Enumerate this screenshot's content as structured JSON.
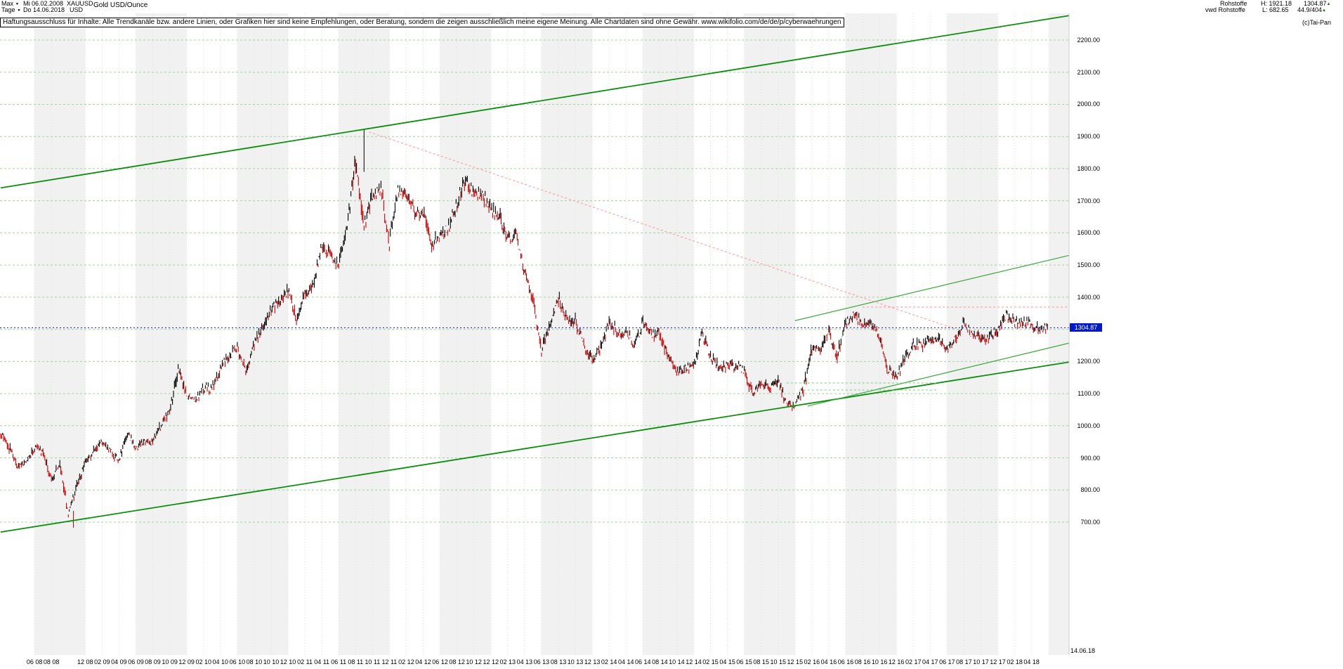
{
  "icons": {
    "dropdown": "▼",
    "up_arrow": "▲"
  },
  "header": {
    "left": {
      "range_selector": "Max",
      "range_start_date": "Mi 06.02.2008",
      "symbol": "XAUUSD",
      "instrument_name": "Gold USD/Ounce",
      "period_selector": "Tage",
      "period_end_date": "Do 14.06.2018",
      "currency": "USD"
    },
    "right": {
      "category": "Rohstoffe",
      "high_label": "H: 1921.18",
      "last_value": "1304.87",
      "feed": "vwd Rohstoffe",
      "low_label": "L: 682.65",
      "ratio_value": "44.9/404",
      "copyright": "(c)Tai-Pan"
    }
  },
  "disclaimer": "Haftungsausschluss für Inhalte: Alle Trendkanäle bzw. andere Linien, oder Grafiken hier sind keine Empfehlungen, oder Beratung, sondern die zeigen ausschließlich meine eigene Meinung. Alle Chartdaten sind ohne Gewähr.  www.wikifolio.com/de/de/p/cyberwaehrungen",
  "y_axis": {
    "ticks": [
      "2200.00",
      "2100.00",
      "2000.00",
      "1900.00",
      "1800.00",
      "1700.00",
      "1600.00",
      "1500.00",
      "1400.00",
      "1300.00",
      "1200.00",
      "1100.00",
      "1000.00",
      "900.00",
      "800.00",
      "700.00"
    ],
    "price_marker": "1304.87",
    "end_date": "14.06.18"
  },
  "x_axis": {
    "ticks": [
      {
        "label": "06 08",
        "m": 4
      },
      {
        "label": "08 08",
        "m": 6
      },
      {
        "label": "12 08",
        "m": 10
      },
      {
        "label": "02 09",
        "m": 12
      },
      {
        "label": "04 09",
        "m": 14
      },
      {
        "label": "06 09",
        "m": 16
      },
      {
        "label": "08 09",
        "m": 18
      },
      {
        "label": "10 09",
        "m": 20
      },
      {
        "label": "12 09",
        "m": 22
      },
      {
        "label": "02 10",
        "m": 24
      },
      {
        "label": "04 10",
        "m": 26
      },
      {
        "label": "06 10",
        "m": 28
      },
      {
        "label": "08 10",
        "m": 30
      },
      {
        "label": "10 10",
        "m": 32
      },
      {
        "label": "12 10",
        "m": 34
      },
      {
        "label": "02 11",
        "m": 36
      },
      {
        "label": "04 11",
        "m": 38
      },
      {
        "label": "06 11",
        "m": 40
      },
      {
        "label": "08 11",
        "m": 42
      },
      {
        "label": "10 11",
        "m": 44
      },
      {
        "label": "12 11",
        "m": 46
      },
      {
        "label": "02 12",
        "m": 48
      },
      {
        "label": "04 12",
        "m": 50
      },
      {
        "label": "06 12",
        "m": 52
      },
      {
        "label": "08 12",
        "m": 54
      },
      {
        "label": "10 12",
        "m": 56
      },
      {
        "label": "12 12",
        "m": 58
      },
      {
        "label": "02 13",
        "m": 60
      },
      {
        "label": "04 13",
        "m": 62
      },
      {
        "label": "06 13",
        "m": 64
      },
      {
        "label": "08 13",
        "m": 66
      },
      {
        "label": "10 13",
        "m": 68
      },
      {
        "label": "12 13",
        "m": 70
      },
      {
        "label": "02 14",
        "m": 72
      },
      {
        "label": "04 14",
        "m": 74
      },
      {
        "label": "06 14",
        "m": 76
      },
      {
        "label": "08 14",
        "m": 78
      },
      {
        "label": "10 14",
        "m": 80
      },
      {
        "label": "12 14",
        "m": 82
      },
      {
        "label": "02 15",
        "m": 84
      },
      {
        "label": "04 15",
        "m": 86
      },
      {
        "label": "06 15",
        "m": 88
      },
      {
        "label": "08 15",
        "m": 90
      },
      {
        "label": "10 15",
        "m": 92
      },
      {
        "label": "12 15",
        "m": 94
      },
      {
        "label": "02 16",
        "m": 96
      },
      {
        "label": "04 16",
        "m": 98
      },
      {
        "label": "06 16",
        "m": 100
      },
      {
        "label": "08 16",
        "m": 102
      },
      {
        "label": "10 16",
        "m": 104
      },
      {
        "label": "12 16",
        "m": 106
      },
      {
        "label": "02 17",
        "m": 108
      },
      {
        "label": "04 17",
        "m": 110
      },
      {
        "label": "06 17",
        "m": 112
      },
      {
        "label": "08 17",
        "m": 114
      },
      {
        "label": "10 17",
        "m": 116
      },
      {
        "label": "12 17",
        "m": 118
      },
      {
        "label": "02 18",
        "m": 120
      },
      {
        "label": "04 18",
        "m": 122
      }
    ]
  },
  "chart_data": {
    "type": "candlestick",
    "title": "Gold USD/Ounce (XAUUSD), Tage, Max 06.02.2008 - 14.06.2018",
    "x_unit": "month",
    "x_start_month": "2008-02",
    "x_end_month": "2018-06",
    "ylabel": "USD",
    "ylim": [
      650,
      2260
    ],
    "y_gridlines": [
      700,
      800,
      900,
      1000,
      1100,
      1200,
      1300,
      1400,
      1500,
      1600,
      1700,
      1800,
      1900,
      2000,
      2100,
      2200
    ],
    "monthly_close": [
      975,
      935,
      870,
      885,
      930,
      915,
      835,
      885,
      725,
      815,
      880,
      925,
      950,
      920,
      890,
      975,
      930,
      955,
      950,
      1005,
      1045,
      1175,
      1095,
      1080,
      1118,
      1115,
      1180,
      1215,
      1245,
      1170,
      1250,
      1310,
      1360,
      1385,
      1420,
      1335,
      1410,
      1440,
      1565,
      1535,
      1500,
      1630,
      1825,
      1620,
      1720,
      1745,
      1565,
      1740,
      1720,
      1670,
      1665,
      1560,
      1600,
      1615,
      1690,
      1770,
      1720,
      1715,
      1675,
      1660,
      1580,
      1595,
      1475,
      1390,
      1235,
      1310,
      1395,
      1330,
      1325,
      1250,
      1205,
      1245,
      1325,
      1290,
      1290,
      1250,
      1325,
      1285,
      1285,
      1210,
      1170,
      1180,
      1185,
      1285,
      1215,
      1185,
      1185,
      1190,
      1170,
      1095,
      1135,
      1115,
      1140,
      1065,
      1060,
      1115,
      1240,
      1235,
      1290,
      1215,
      1320,
      1350,
      1310,
      1315,
      1275,
      1175,
      1150,
      1210,
      1250,
      1250,
      1265,
      1270,
      1240,
      1270,
      1320,
      1280,
      1270,
      1275,
      1300,
      1345,
      1318,
      1325,
      1315,
      1300,
      1304.87
    ],
    "extremes": {
      "high_date": "2011-09",
      "high": 1921.18,
      "low_date": "2008-10",
      "low": 682.65
    },
    "last": {
      "date": "14.06.2018",
      "value": 1304.87
    },
    "spikes": [
      {
        "m": 43.0,
        "from": 1790,
        "to": 1921.18,
        "color": "#000000"
      },
      {
        "m": 8.6,
        "from": 735,
        "to": 682.65,
        "color": "#cc0000"
      }
    ],
    "trendlines": [
      {
        "name": "channel-top",
        "color": "#0a8f0a",
        "width": 1.8,
        "dash": "",
        "m1": 0,
        "p1": 1740,
        "m2": 126.5,
        "p2": 2276
      },
      {
        "name": "channel-bottom",
        "color": "#0a8f0a",
        "width": 1.8,
        "dash": "",
        "m1": 0,
        "p1": 669,
        "m2": 126.5,
        "p2": 1198
      },
      {
        "name": "resistance-rising",
        "color": "#3aa83a",
        "width": 1.2,
        "dash": "",
        "m1": 94,
        "p1": 1327,
        "m2": 126.5,
        "p2": 1530
      },
      {
        "name": "support-fan",
        "color": "#3aa83a",
        "width": 1.2,
        "dash": "",
        "m1": 95.5,
        "p1": 1061,
        "m2": 126.5,
        "p2": 1257
      },
      {
        "name": "downtrend-from-ath",
        "color": "#ff9090",
        "width": 1,
        "dash": "3 3",
        "m1": 43.6,
        "p1": 1914,
        "m2": 113,
        "p2": 1301
      },
      {
        "name": "resistance-horizontal",
        "color": "#ff9090",
        "width": 1,
        "dash": "3 3",
        "m1": 102,
        "p1": 1369,
        "m2": 126.5,
        "p2": 1369
      },
      {
        "name": "support-dashed-1133",
        "color": "#7ccc7c",
        "width": 1,
        "dash": "3 3",
        "m1": 93,
        "p1": 1133,
        "m2": 111,
        "p2": 1133
      },
      {
        "name": "support-dashed-1111",
        "color": "#7ccc7c",
        "width": 1,
        "dash": "3 3",
        "m1": 94.5,
        "p1": 1111,
        "m2": 111,
        "p2": 1111
      }
    ],
    "current_price_line": {
      "value": 1304.87,
      "color": "#1515cc",
      "dash": "2 3"
    },
    "bar_colors": {
      "up": "#000000",
      "down": "#cc0000"
    },
    "stripe_color": "#f1f1f1",
    "hgrid_color": "#9fd49f",
    "vgrid_color": "#cfe8cf",
    "legend": "none",
    "grid": "on"
  }
}
